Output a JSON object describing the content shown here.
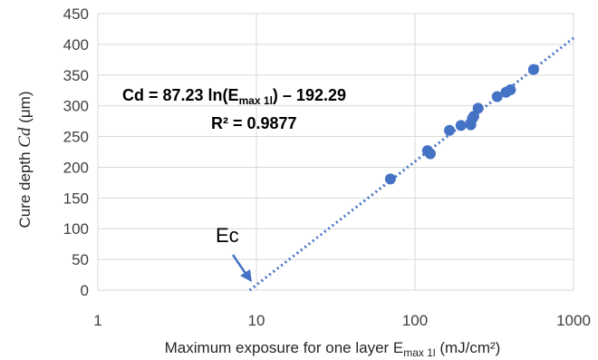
{
  "chart_data": {
    "type": "scatter",
    "x_scale": "log",
    "xlim": [
      1,
      1000
    ],
    "ylim": [
      0,
      450
    ],
    "x_ticks": [
      "1",
      "10",
      "100",
      "1000"
    ],
    "y_ticks": [
      "0",
      "50",
      "100",
      "150",
      "200",
      "250",
      "300",
      "350",
      "400",
      "450"
    ],
    "grid": true,
    "xlabel": "Maximum exposure for one layer E",
    "xlabel_sub": "max 1l",
    "xlabel_unit": " (mJ/cm²)",
    "ylabel_prefix": "Cure depth ",
    "ylabel_symbol": "Cd",
    "ylabel_unit": " (μm)",
    "series": [
      {
        "marker_color": "#4472C4",
        "x": [
          70,
          120,
          125,
          165,
          195,
          225,
          230,
          235,
          250,
          330,
          375,
          400,
          560
        ],
        "y": [
          181,
          227,
          222,
          260,
          268,
          269,
          279,
          283,
          296,
          315,
          322,
          326,
          359
        ]
      }
    ],
    "trendline": {
      "kind": "logarithmic",
      "a": 87.23,
      "b": -192.29,
      "style": "dotted",
      "color": "#4472C4"
    },
    "annotations": {
      "eq_line1_a": "Cd = 87.23 ln(E",
      "eq_line1_sub": "max 1l",
      "eq_line1_b": ") – 192.29",
      "eq_line2": "R² = 0.9877",
      "ec_label": "Ec"
    }
  }
}
